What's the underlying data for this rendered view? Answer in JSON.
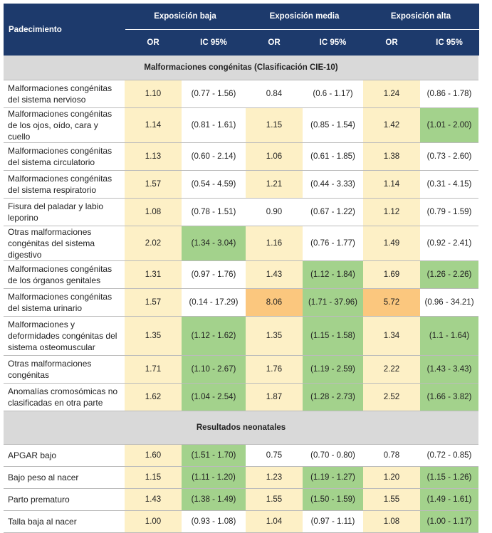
{
  "header": {
    "condition": "Padecimiento",
    "groups": [
      "Exposición baja",
      "Exposición media",
      "Exposición alta"
    ],
    "subheaders": [
      "OR",
      "IC 95%",
      "OR",
      "IC 95%",
      "OR",
      "IC 95%"
    ]
  },
  "sections": [
    {
      "title": "Malformaciones congénitas (Clasificación CIE-10)",
      "rows": [
        {
          "name": "Malformaciones congénitas del sistema nervioso",
          "cells": [
            "1.10",
            "(0.77 - 1.56)",
            "0.84",
            "(0.6 - 1.17)",
            "1.24",
            "(0.86 - 1.78)"
          ],
          "shading": [
            "#fdf0c6",
            "#ffffff",
            "#ffffff",
            "#ffffff",
            "#fdf0c6",
            "#ffffff"
          ]
        },
        {
          "name": "Malformaciones congénitas de los ojos, oído, cara y cuello",
          "cells": [
            "1.14",
            "(0.81 - 1.61)",
            "1.15",
            "(0.85 - 1.54)",
            "1.42",
            "(1.01 - 2.00)"
          ],
          "shading": [
            "#fdf0c6",
            "#ffffff",
            "#fdf0c6",
            "#ffffff",
            "#fdf0c6",
            "#a3d28c"
          ]
        },
        {
          "name": "Malformaciones congénitas del sistema circulatorio",
          "cells": [
            "1.13",
            "(0.60 - 2.14)",
            "1.06",
            "(0.61 - 1.85)",
            "1.38",
            "(0.73 - 2.60)"
          ],
          "shading": [
            "#fdf0c6",
            "#ffffff",
            "#fdf0c6",
            "#ffffff",
            "#fdf0c6",
            "#ffffff"
          ]
        },
        {
          "name": "Malformaciones congénitas del sistema respiratorio",
          "cells": [
            "1.57",
            "(0.54 - 4.59)",
            "1.21",
            "(0.44 - 3.33)",
            "1.14",
            "(0.31 - 4.15)"
          ],
          "shading": [
            "#fdf0c6",
            "#ffffff",
            "#fdf0c6",
            "#ffffff",
            "#fdf0c6",
            "#ffffff"
          ]
        },
        {
          "name": "Fisura del paladar y labio leporino",
          "cells": [
            "1.08",
            "(0.78 - 1.51)",
            "0.90",
            "(0.67 - 1.22)",
            "1.12",
            "(0.79 - 1.59)"
          ],
          "shading": [
            "#fdf0c6",
            "#ffffff",
            "#ffffff",
            "#ffffff",
            "#fdf0c6",
            "#ffffff"
          ]
        },
        {
          "name": "Otras malformaciones congénitas del sistema digestivo",
          "cells": [
            "2.02",
            "(1.34 - 3.04)",
            "1.16",
            "(0.76 - 1.77)",
            "1.49",
            "(0.92 - 2.41)"
          ],
          "shading": [
            "#fdf0c6",
            "#a3d28c",
            "#fdf0c6",
            "#ffffff",
            "#fdf0c6",
            "#ffffff"
          ]
        },
        {
          "name": "Malformaciones congénitas de los órganos genitales",
          "cells": [
            "1.31",
            "(0.97 - 1.76)",
            "1.43",
            "(1.12 - 1.84)",
            "1.69",
            "(1.26 - 2.26)"
          ],
          "shading": [
            "#fdf0c6",
            "#ffffff",
            "#fdf0c6",
            "#a3d28c",
            "#fdf0c6",
            "#a3d28c"
          ]
        },
        {
          "name": "Malformaciones congénitas del sistema urinario",
          "cells": [
            "1.57",
            "(0.14 - 17.29)",
            "8.06",
            "(1.71 - 37.96)",
            "5.72",
            "(0.96 - 34.21)"
          ],
          "shading": [
            "#fdf0c6",
            "#ffffff",
            "#fbc77e",
            "#a3d28c",
            "#fbc77e",
            "#ffffff"
          ]
        },
        {
          "name": "Malformaciones y deformidades congénitas del sistema osteomuscular",
          "cells": [
            "1.35",
            "(1.12 - 1.62)",
            "1.35",
            "(1.15 - 1.58)",
            "1.34",
            "(1.1 - 1.64)"
          ],
          "shading": [
            "#fdf0c6",
            "#a3d28c",
            "#fdf0c6",
            "#a3d28c",
            "#fdf0c6",
            "#a3d28c"
          ]
        },
        {
          "name": "Otras malformaciones congénitas",
          "cells": [
            "1.71",
            "(1.10 - 2.67)",
            "1.76",
            "(1.19 - 2.59)",
            "2.22",
            "(1.43 - 3.43)"
          ],
          "shading": [
            "#fdf0c6",
            "#a3d28c",
            "#fdf0c6",
            "#a3d28c",
            "#fdf0c6",
            "#a3d28c"
          ]
        },
        {
          "name": "Anomalías cromosómicas no clasificadas en otra parte",
          "cells": [
            "1.62",
            "(1.04 - 2.54)",
            "1.87",
            "(1.28 - 2.73)",
            "2.52",
            "(1.66 - 3.82)"
          ],
          "shading": [
            "#fdf0c6",
            "#a3d28c",
            "#fdf0c6",
            "#a3d28c",
            "#fdf0c6",
            "#a3d28c"
          ]
        }
      ]
    },
    {
      "title": "Resultados neonatales",
      "rows": [
        {
          "name": "APGAR bajo",
          "cells": [
            "1.60",
            "(1.51 - 1.70)",
            "0.75",
            "(0.70 - 0.80)",
            "0.78",
            "(0.72 - 0.85)"
          ],
          "shading": [
            "#fdf0c6",
            "#a3d28c",
            "#ffffff",
            "#ffffff",
            "#ffffff",
            "#ffffff"
          ]
        },
        {
          "name": "Bajo peso al nacer",
          "cells": [
            "1.15",
            "(1.11 - 1.20)",
            "1.23",
            "(1.19 - 1.27)",
            "1.20",
            "(1.15 - 1.26)"
          ],
          "shading": [
            "#fdf0c6",
            "#a3d28c",
            "#fdf0c6",
            "#a3d28c",
            "#fdf0c6",
            "#a3d28c"
          ]
        },
        {
          "name": "Parto prematuro",
          "cells": [
            "1.43",
            "(1.38 - 1.49)",
            "1.55",
            "(1.50 - 1.59)",
            "1.55",
            "(1.49 - 1.61)"
          ],
          "shading": [
            "#fdf0c6",
            "#a3d28c",
            "#fdf0c6",
            "#a3d28c",
            "#fdf0c6",
            "#a3d28c"
          ]
        },
        {
          "name": "Talla baja al nacer",
          "cells": [
            "1.00",
            "(0.93 - 1.08)",
            "1.04",
            "(0.97 - 1.11)",
            "1.08",
            "(1.00 - 1.17)"
          ],
          "shading": [
            "#fdf0c6",
            "#ffffff",
            "#fdf0c6",
            "#ffffff",
            "#fdf0c6",
            "#a3d28c"
          ]
        }
      ]
    }
  ]
}
